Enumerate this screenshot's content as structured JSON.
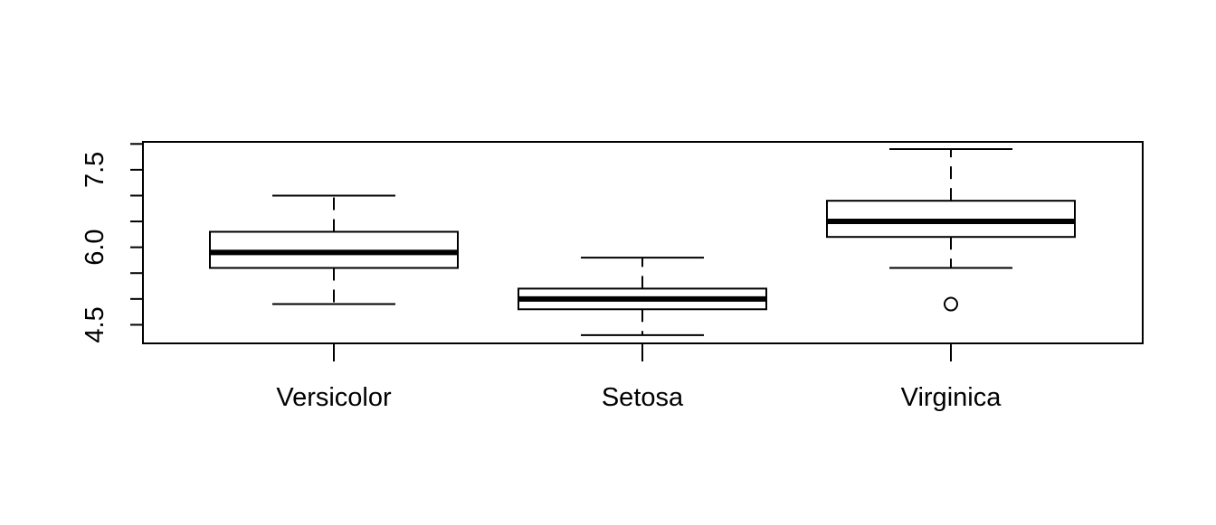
{
  "chart_data": {
    "type": "box",
    "title": "",
    "xlabel": "",
    "ylabel": "",
    "categories": [
      "Versicolor",
      "Setosa",
      "Virginica"
    ],
    "boxes": [
      {
        "category": "Versicolor",
        "whisker_low": 4.9,
        "q1": 5.6,
        "median": 5.9,
        "q3": 6.3,
        "whisker_high": 7.0,
        "outliers": []
      },
      {
        "category": "Setosa",
        "whisker_low": 4.3,
        "q1": 4.8,
        "median": 5.0,
        "q3": 5.2,
        "whisker_high": 5.8,
        "outliers": []
      },
      {
        "category": "Virginica",
        "whisker_low": 5.6,
        "q1": 6.2,
        "median": 6.5,
        "q3": 6.9,
        "whisker_high": 7.9,
        "outliers": [
          4.9
        ]
      }
    ],
    "yticks": [
      4.5,
      5.0,
      5.5,
      6.0,
      6.5,
      7.0,
      7.5,
      8.0
    ],
    "ytick_labels": [
      "4.5",
      "",
      "",
      "6.0",
      "",
      "",
      "7.5",
      ""
    ],
    "ylim": [
      4.14,
      8.04
    ],
    "grid": false,
    "legend": "none",
    "colors": {
      "stroke": "#000000",
      "box_fill": "#ffffff",
      "background": "#ffffff"
    }
  }
}
